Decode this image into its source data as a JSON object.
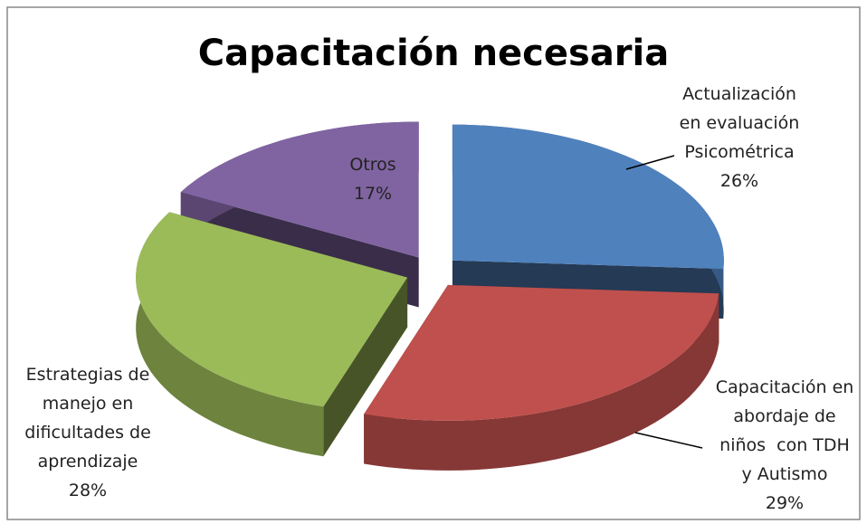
{
  "chart_data": {
    "type": "pie3d",
    "title": "Capacitación necesaria",
    "categories": [
      "Actualización\nen evaluación\nPsicométrica",
      "Capacitación en\nabordaje de\nniños  con TDH\ny Autismo",
      "Estrategias de\nmanejo en\ndificultades de\naprendizaje",
      "Otros"
    ],
    "values": [
      26,
      29,
      28,
      17
    ],
    "value_labels": [
      "26%",
      "29%",
      "28%",
      "17%"
    ],
    "colors": [
      "#4f81bd",
      "#c0504d",
      "#9bbb59",
      "#8064a2"
    ]
  }
}
